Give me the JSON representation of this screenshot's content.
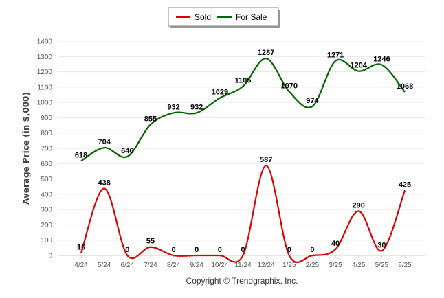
{
  "chart_data": {
    "type": "line",
    "categories": [
      "4/24",
      "5/24",
      "6/24",
      "7/24",
      "8/24",
      "9/24",
      "10/24",
      "11/24",
      "12/24",
      "1/25",
      "2/25",
      "3/25",
      "4/25",
      "5/25",
      "6/25"
    ],
    "series": [
      {
        "name": "Sold",
        "color": "#dd0000",
        "values": [
          16,
          438,
          0,
          55,
          0,
          0,
          0,
          0,
          587,
          0,
          0,
          40,
          290,
          30,
          425
        ]
      },
      {
        "name": "For Sale",
        "color": "#006400",
        "values": [
          618,
          704,
          646,
          855,
          932,
          932,
          1029,
          1105,
          1287,
          1070,
          974,
          1271,
          1204,
          1246,
          1068
        ]
      }
    ],
    "ylabel": "Average Price (in $,000)",
    "xlabel": "",
    "ylim": [
      0,
      1400
    ],
    "yticks": [
      0,
      100,
      200,
      300,
      400,
      500,
      600,
      700,
      800,
      900,
      1000,
      1100,
      1200,
      1300,
      1400
    ],
    "grid": true,
    "legend_position": "top-center"
  },
  "copyright": "Copyright © Trendgraphix, Inc."
}
